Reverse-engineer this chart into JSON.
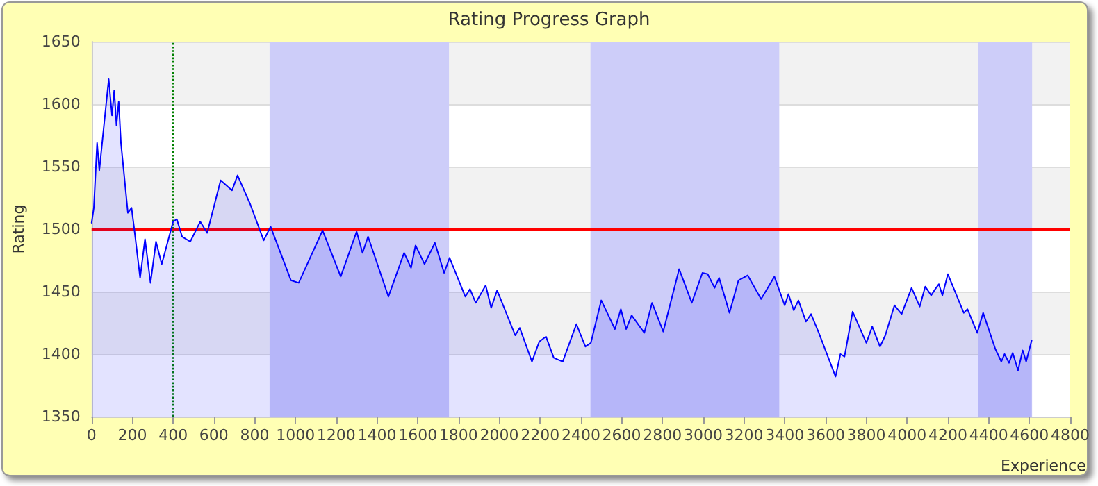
{
  "chart_data": {
    "type": "area",
    "title": "Rating Progress Graph",
    "xlabel": "Experience",
    "ylabel": "Rating",
    "x": [
      0,
      11,
      27,
      38,
      84,
      100,
      111,
      122,
      133,
      144,
      178,
      196,
      211,
      238,
      262,
      289,
      316,
      344,
      400,
      418,
      444,
      484,
      533,
      567,
      633,
      689,
      716,
      778,
      844,
      878,
      978,
      1016,
      1133,
      1222,
      1300,
      1329,
      1356,
      1456,
      1533,
      1567,
      1589,
      1633,
      1684,
      1729,
      1756,
      1833,
      1856,
      1884,
      1933,
      1960,
      1989,
      2078,
      2100,
      2160,
      2196,
      2229,
      2267,
      2311,
      2378,
      2422,
      2449,
      2500,
      2567,
      2596,
      2622,
      2649,
      2711,
      2749,
      2804,
      2882,
      2944,
      2996,
      3022,
      3056,
      3078,
      3129,
      3173,
      3218,
      3284,
      3349,
      3400,
      3418,
      3444,
      3467,
      3504,
      3529,
      3567,
      3649,
      3673,
      3693,
      3733,
      3800,
      3829,
      3867,
      3893,
      3938,
      3973,
      4022,
      4062,
      4089,
      4118,
      4138,
      4156,
      4173,
      4200,
      4278,
      4296,
      4344,
      4373,
      4433,
      4462,
      4478,
      4500,
      4518,
      4544,
      4567,
      4584,
      4611
    ],
    "series": [
      {
        "color": "#0000ff",
        "values": [
          1505,
          1517,
          1569,
          1547,
          1620,
          1591,
          1611,
          1583,
          1602,
          1569,
          1513,
          1517,
          1498,
          1461,
          1492,
          1457,
          1490,
          1472,
          1506,
          1508,
          1494,
          1490,
          1506,
          1497,
          1539,
          1531,
          1543,
          1520,
          1491,
          1502,
          1459,
          1457,
          1499,
          1462,
          1498,
          1481,
          1494,
          1446,
          1481,
          1469,
          1487,
          1472,
          1489,
          1465,
          1477,
          1446,
          1452,
          1441,
          1455,
          1437,
          1451,
          1415,
          1421,
          1394,
          1410,
          1414,
          1397,
          1394,
          1424,
          1406,
          1409,
          1443,
          1420,
          1436,
          1420,
          1431,
          1417,
          1441,
          1418,
          1468,
          1441,
          1465,
          1464,
          1453,
          1461,
          1433,
          1459,
          1463,
          1444,
          1462,
          1439,
          1448,
          1435,
          1443,
          1426,
          1432,
          1417,
          1382,
          1400,
          1398,
          1434,
          1409,
          1422,
          1406,
          1415,
          1439,
          1432,
          1453,
          1438,
          1454,
          1447,
          1452,
          1456,
          1447,
          1464,
          1433,
          1436,
          1417,
          1433,
          1404,
          1394,
          1400,
          1393,
          1401,
          1387,
          1403,
          1394,
          1411
        ]
      }
    ],
    "xlim": [
      0,
      4800
    ],
    "xticks": [
      0,
      200,
      400,
      600,
      800,
      1000,
      1200,
      1400,
      1600,
      1800,
      2000,
      2200,
      2400,
      2600,
      2800,
      3000,
      3200,
      3400,
      3600,
      3800,
      4000,
      4200,
      4400,
      4600,
      4800
    ],
    "ylim": [
      1350,
      1650
    ],
    "yticks": [
      1350,
      1400,
      1450,
      1500,
      1550,
      1600,
      1650
    ],
    "grid": "y",
    "marker": "none",
    "line_style": "solid",
    "ref_lines": [
      {
        "axis": "y",
        "value": 1500,
        "color": "#ff0000",
        "line_style": "solid"
      },
      {
        "axis": "x",
        "value": 400,
        "color": "#008000",
        "line_style": "dotted"
      }
    ],
    "bands": [
      {
        "axis": "x",
        "from": 873,
        "to": 1753,
        "color": "#cdcdf9"
      },
      {
        "axis": "x",
        "from": 2447,
        "to": 3373,
        "color": "#cdcdf9"
      },
      {
        "axis": "x",
        "from": 4347,
        "to": 4613,
        "color": "#cdcdf9"
      }
    ]
  }
}
